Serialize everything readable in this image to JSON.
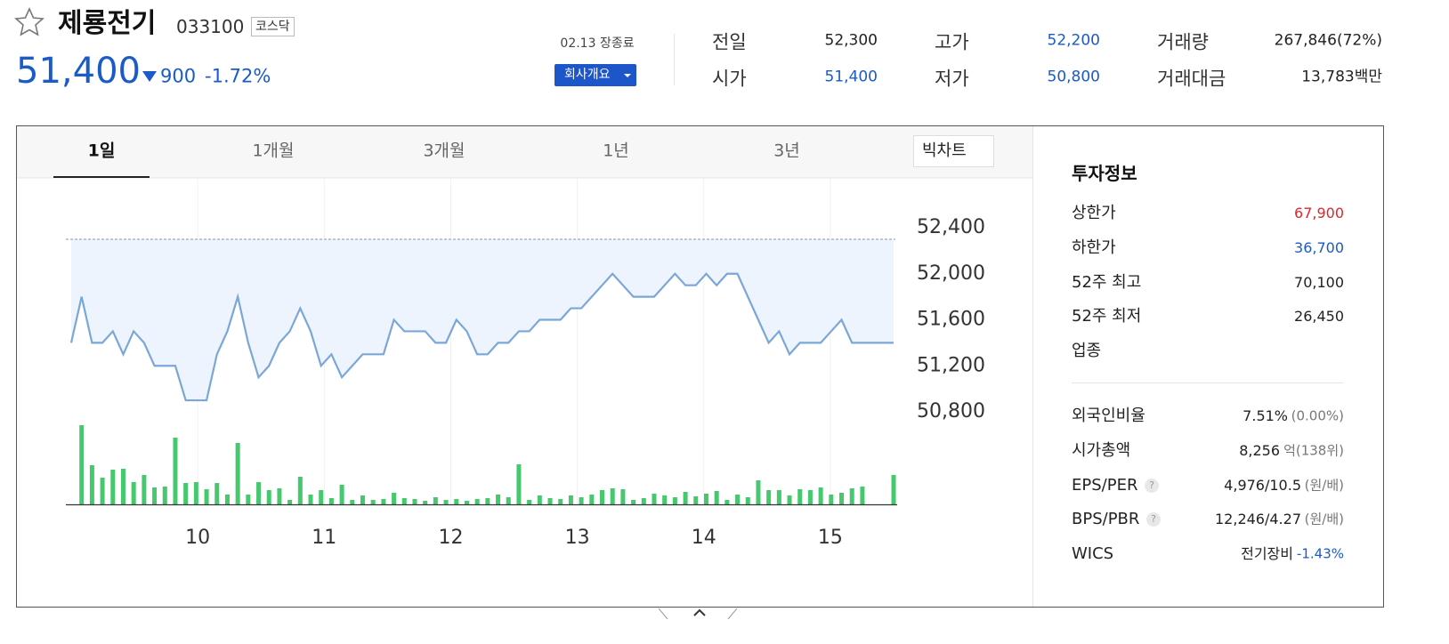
{
  "header": {
    "title": "제룡전기",
    "code": "033100",
    "market": "코스닥",
    "price": "51,400",
    "change": "900",
    "change_rate": "-1.72%",
    "status": "02.13 장종료",
    "button": "회사개요"
  },
  "summary": [
    {
      "label": "전일",
      "value": "52,300",
      "color": "#222222"
    },
    {
      "label": "시가",
      "value": "51,400",
      "color": "#1a5bc8"
    },
    {
      "label": "고가",
      "value": "52,200",
      "color": "#1a5bc8"
    },
    {
      "label": "저가",
      "value": "50,800",
      "color": "#1a5bc8"
    },
    {
      "label": "거래량",
      "value": "267,846(72%)",
      "color": "#222222"
    },
    {
      "label": "거래대금",
      "value": "13,783백만",
      "color": "#222222"
    }
  ],
  "tabs": [
    "1일",
    "1개월",
    "3개월",
    "1년",
    "3년"
  ],
  "big_chart": "빅차트",
  "invest": {
    "title": "투자정보",
    "rows": [
      {
        "label": "상한가",
        "value": "67,900",
        "color": "#e0262b"
      },
      {
        "label": "하한가",
        "value": "36,700",
        "color": "#1a5bc8"
      },
      {
        "label": "52주 최고",
        "value": "70,100",
        "color": "#222222"
      },
      {
        "label": "52주 최저",
        "value": "26,450",
        "color": "#222222"
      },
      {
        "label": "업종"
      }
    ],
    "details": [
      {
        "label": "외국인비율",
        "value": "7.51%",
        "unit": "(0.00%)"
      },
      {
        "label": "시가총액",
        "value": "8,256",
        "unit": "억(138위)"
      },
      {
        "label": "EPS/PER",
        "help": "?",
        "value": "4,976/10.5",
        "unit": "(원/배)"
      },
      {
        "label": "BPS/PBR",
        "help": "?",
        "value": "12,246/4.27",
        "unit": "(원/배)"
      },
      {
        "label": "WICS",
        "value": "전기장비",
        "unit": "-1.43%",
        "unit_color": "#1a5bc8"
      }
    ]
  },
  "chart": {
    "type": "line",
    "reference": 52300,
    "xlim": [
      9,
      15.5
    ],
    "xticks": [
      10,
      11,
      12,
      13,
      14,
      15
    ],
    "ylim": [
      50800,
      52400
    ],
    "yticks": [
      {
        "value": 50800,
        "label": "50,800"
      },
      {
        "value": 51200,
        "label": "51,200"
      },
      {
        "value": 51600,
        "label": "51,600"
      },
      {
        "value": 52000,
        "label": "52,000"
      },
      {
        "value": 52400,
        "label": "52,400"
      }
    ],
    "line_color": "#7ba7d8",
    "fill_color": "#edf4fd",
    "volume_color": "#45c86e",
    "values": [
      51400,
      51800,
      51400,
      51400,
      51500,
      51300,
      51500,
      51400,
      51200,
      51200,
      51200,
      50900,
      50900,
      50900,
      51300,
      51500,
      51800,
      51400,
      51100,
      51200,
      51400,
      51500,
      51700,
      51500,
      51200,
      51300,
      51100,
      51200,
      51300,
      51300,
      51300,
      51600,
      51500,
      51500,
      51500,
      51400,
      51400,
      51600,
      51500,
      51300,
      51300,
      51400,
      51400,
      51500,
      51500,
      51600,
      51600,
      51600,
      51700,
      51700,
      51800,
      51900,
      52000,
      51900,
      51800,
      51800,
      51800,
      51900,
      52000,
      51900,
      51900,
      52000,
      51900,
      52000,
      52000,
      51800,
      51600,
      51400,
      51500,
      51300,
      51400,
      51400,
      51400,
      51500,
      51600,
      51400,
      51400,
      51400,
      51400,
      51400
    ],
    "volumes": [
      null,
      89,
      44,
      30,
      39,
      40,
      25,
      33,
      19,
      20,
      75,
      24,
      25,
      17,
      24,
      11,
      69,
      11,
      25,
      16,
      18,
      5,
      31,
      11,
      16,
      7,
      22,
      5,
      10,
      5,
      6,
      13,
      7,
      6,
      4,
      8,
      5,
      6,
      4,
      6,
      7,
      11,
      8,
      45,
      5,
      10,
      7,
      6,
      10,
      8,
      11,
      16,
      18,
      17,
      5,
      7,
      12,
      10,
      8,
      14,
      9,
      12,
      15,
      5,
      11,
      8,
      27,
      16,
      16,
      10,
      17,
      16,
      19,
      11,
      13,
      18,
      20,
      null,
      null,
      33
    ]
  }
}
